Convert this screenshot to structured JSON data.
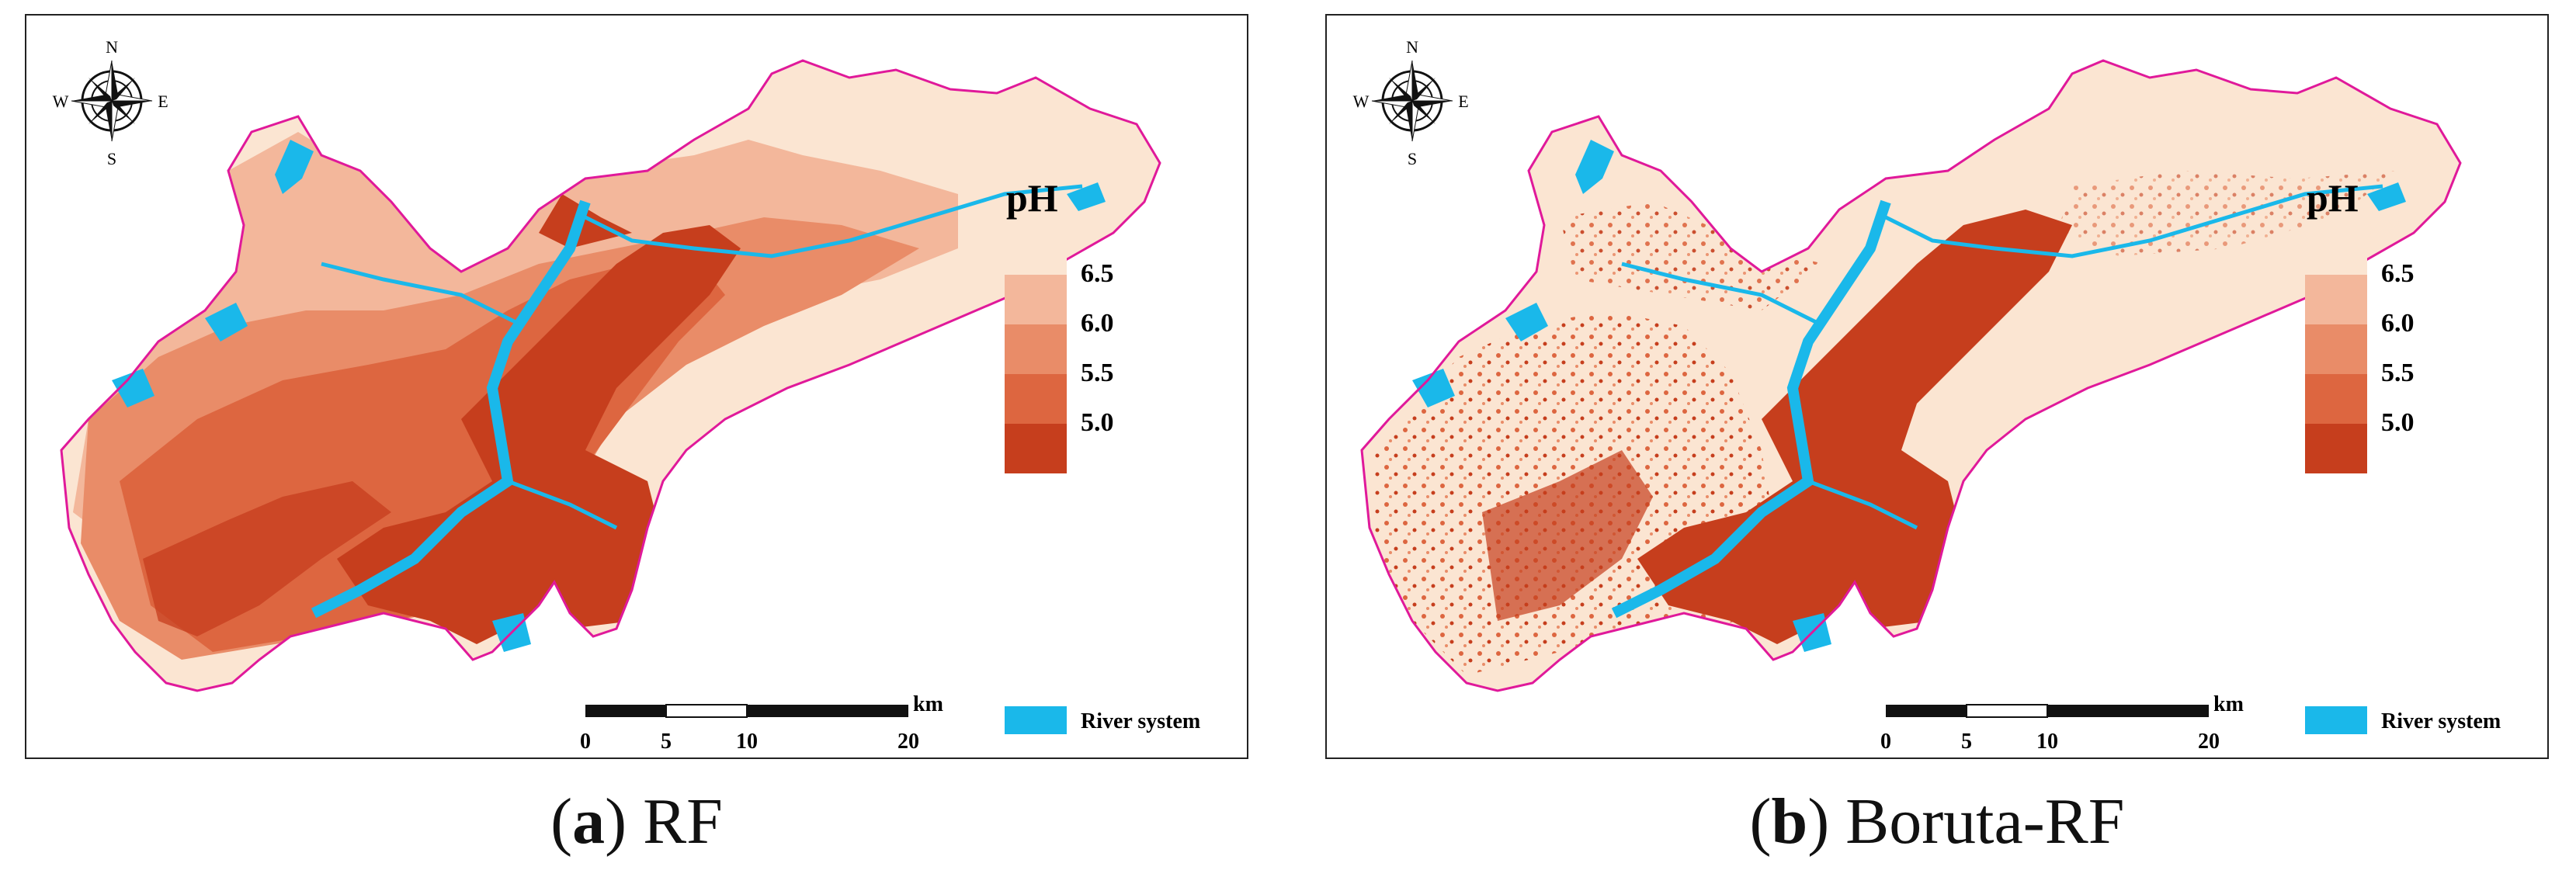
{
  "panels": [
    {
      "id": "a",
      "caption_letter": "a",
      "caption_text": "RF",
      "legend_title": "pH",
      "legend": [
        {
          "label": "6.5",
          "color": "#fbe5d2"
        },
        {
          "label": "6.0",
          "color": "#f3b79b"
        },
        {
          "label": "5.5",
          "color": "#e98c68"
        },
        {
          "label": "5.0",
          "color": "#dd6640"
        },
        {
          "label": "",
          "color": "#c63e1d"
        }
      ],
      "river_label": "River system",
      "river_color": "#1ab8ea",
      "boundary_color": "#e0199a",
      "scale_unit": "km",
      "scale_ticks": [
        "0",
        "5",
        "10",
        "20"
      ],
      "compass": {
        "n": "N",
        "s": "S",
        "e": "E",
        "w": "W"
      }
    },
    {
      "id": "b",
      "caption_letter": "b",
      "caption_text": "Boruta-RF",
      "legend_title": "pH",
      "legend": [
        {
          "label": "6.5",
          "color": "#fbe5d2"
        },
        {
          "label": "6.0",
          "color": "#f3b79b"
        },
        {
          "label": "5.5",
          "color": "#e98c68"
        },
        {
          "label": "5.0",
          "color": "#dd6640"
        },
        {
          "label": "",
          "color": "#c63e1d"
        }
      ],
      "river_label": "River system",
      "river_color": "#1ab8ea",
      "boundary_color": "#e0199a",
      "scale_unit": "km",
      "scale_ticks": [
        "0",
        "5",
        "10",
        "20"
      ],
      "compass": {
        "n": "N",
        "s": "S",
        "e": "E",
        "w": "W"
      }
    }
  ]
}
